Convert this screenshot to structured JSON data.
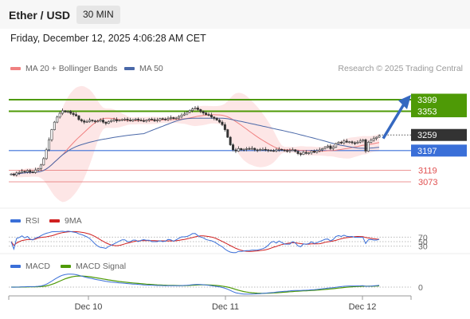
{
  "header": {
    "title": "Ether / USD",
    "timeframe": "30 MIN"
  },
  "datetime": "Friday, December 12, 2025 4:06:28 AM CET",
  "copyright": "Research © 2025 Trading Central",
  "colors": {
    "bg": "#ffffff",
    "up_green": "#4e9a06",
    "blue": "#3a6fd8",
    "red": "#e05050",
    "candle": "#333333",
    "band": "#fde2e2",
    "ma20": "#f08080",
    "ma50": "#4a68a8",
    "current": "#333333"
  },
  "chart_data": [
    {
      "type": "candlestick",
      "symbol": "Ether / USD",
      "timeframe": "30 MIN",
      "x_ticks": [
        "Dec 10",
        "Dec 11",
        "Dec 12"
      ],
      "ylim": [
        3020,
        3445
      ],
      "legend": [
        {
          "name": "MA 20 + Bollinger Bands",
          "color": "#f08080"
        },
        {
          "name": "MA 50",
          "color": "#4a68a8"
        }
      ],
      "levels": [
        {
          "label": "3399",
          "value": 3399,
          "kind": "resistance",
          "color": "#4e9a06"
        },
        {
          "label": "3353",
          "value": 3353,
          "kind": "resistance",
          "color": "#4e9a06"
        },
        {
          "label": "3259",
          "value": 3259,
          "kind": "current",
          "color": "#333333"
        },
        {
          "label": "3197",
          "value": 3197,
          "kind": "pivot",
          "color": "#3a6fd8"
        },
        {
          "label": "3119",
          "value": 3119,
          "kind": "support",
          "color": "#e05050"
        },
        {
          "label": "3073",
          "value": 3073,
          "kind": "support",
          "color": "#e05050"
        }
      ],
      "forecast_arrow": {
        "from": 3245,
        "to": 3399,
        "direction": "up"
      },
      "close_series": [
        3104,
        3100,
        3108,
        3110,
        3115,
        3112,
        3118,
        3112,
        3110,
        3120,
        3125,
        3140,
        3165,
        3200,
        3240,
        3280,
        3310,
        3330,
        3345,
        3355,
        3350,
        3352,
        3345,
        3340,
        3335,
        3320,
        3315,
        3310,
        3312,
        3318,
        3315,
        3312,
        3314,
        3318,
        3310,
        3305,
        3312,
        3316,
        3320,
        3315,
        3318,
        3320,
        3322,
        3318,
        3315,
        3320,
        3322,
        3318,
        3316,
        3314,
        3318,
        3322,
        3320,
        3315,
        3318,
        3324,
        3322,
        3320,
        3325,
        3328,
        3324,
        3326,
        3332,
        3338,
        3342,
        3350,
        3356,
        3362,
        3366,
        3360,
        3352,
        3346,
        3340,
        3338,
        3330,
        3325,
        3318,
        3310,
        3300,
        3280,
        3250,
        3220,
        3200,
        3195,
        3205,
        3200,
        3202,
        3205,
        3203,
        3206,
        3200,
        3198,
        3201,
        3202,
        3200,
        3198,
        3197,
        3196,
        3200,
        3202,
        3199,
        3197,
        3195,
        3198,
        3200,
        3194,
        3185,
        3182,
        3190,
        3186,
        3188,
        3195,
        3190,
        3196,
        3200,
        3205,
        3210,
        3215,
        3205,
        3210,
        3225,
        3230,
        3228,
        3235,
        3230,
        3232,
        3228,
        3226,
        3230,
        3235,
        3240,
        3195,
        3230,
        3238,
        3245,
        3250,
        3256
      ]
    },
    {
      "type": "line",
      "name": "RSI",
      "series": [
        {
          "name": "RSI",
          "color": "#3a6fd8"
        },
        {
          "name": "9MA",
          "color": "#d02020"
        }
      ],
      "levels": [
        70,
        50,
        30
      ],
      "level_labels": [
        "70",
        "50",
        "30"
      ]
    },
    {
      "type": "line",
      "name": "MACD",
      "series": [
        {
          "name": "MACD",
          "color": "#3a6fd8"
        },
        {
          "name": "MACD Signal",
          "color": "#4e9a06"
        }
      ],
      "levels": [
        0
      ],
      "level_labels": [
        "0"
      ]
    }
  ]
}
